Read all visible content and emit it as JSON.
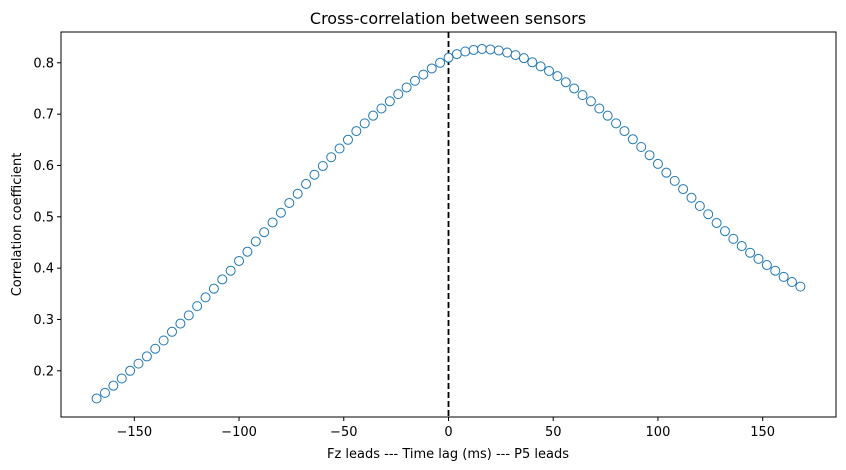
{
  "chart_data": {
    "type": "scatter",
    "title": "Cross-correlation between sensors",
    "xlabel": "Fz leads --- Time lag (ms) --- P5 leads",
    "ylabel": "Correlation coefficient",
    "xlim": [
      -185,
      185
    ],
    "ylim": [
      0.11,
      0.86
    ],
    "xticks": [
      -150,
      -100,
      -50,
      0,
      50,
      100,
      150
    ],
    "xtick_labels": [
      "−150",
      "−100",
      "−50",
      "0",
      "50",
      "100",
      "150"
    ],
    "yticks": [
      0.2,
      0.3,
      0.4,
      0.5,
      0.6,
      0.7,
      0.8
    ],
    "ytick_labels": [
      "0.2",
      "0.3",
      "0.4",
      "0.5",
      "0.6",
      "0.7",
      "0.8"
    ],
    "vline_x": 0,
    "marker_color": "#1f77b4",
    "series": [
      {
        "name": "cross-correlation",
        "x": [
          -168,
          -164,
          -160,
          -156,
          -152,
          -148,
          -144,
          -140,
          -136,
          -132,
          -128,
          -124,
          -120,
          -116,
          -112,
          -108,
          -104,
          -100,
          -96,
          -92,
          -88,
          -84,
          -80,
          -76,
          -72,
          -68,
          -64,
          -60,
          -56,
          -52,
          -48,
          -44,
          -40,
          -36,
          -32,
          -28,
          -24,
          -20,
          -16,
          -12,
          -8,
          -4,
          0,
          4,
          8,
          12,
          16,
          20,
          24,
          28,
          32,
          36,
          40,
          44,
          48,
          52,
          56,
          60,
          64,
          68,
          72,
          76,
          80,
          84,
          88,
          92,
          96,
          100,
          104,
          108,
          112,
          116,
          120,
          124,
          128,
          132,
          136,
          140,
          144,
          148,
          152,
          156,
          160,
          164,
          168
        ],
        "y": [
          0.146,
          0.157,
          0.171,
          0.185,
          0.2,
          0.214,
          0.228,
          0.243,
          0.259,
          0.276,
          0.292,
          0.308,
          0.326,
          0.343,
          0.36,
          0.378,
          0.395,
          0.414,
          0.432,
          0.452,
          0.47,
          0.489,
          0.508,
          0.527,
          0.545,
          0.564,
          0.582,
          0.599,
          0.616,
          0.633,
          0.65,
          0.667,
          0.682,
          0.697,
          0.711,
          0.725,
          0.739,
          0.752,
          0.765,
          0.777,
          0.789,
          0.8,
          0.81,
          0.817,
          0.822,
          0.825,
          0.827,
          0.826,
          0.824,
          0.82,
          0.815,
          0.809,
          0.801,
          0.793,
          0.784,
          0.774,
          0.762,
          0.75,
          0.737,
          0.725,
          0.711,
          0.697,
          0.682,
          0.667,
          0.651,
          0.636,
          0.62,
          0.603,
          0.586,
          0.57,
          0.554,
          0.537,
          0.521,
          0.505,
          0.488,
          0.472,
          0.457,
          0.443,
          0.43,
          0.418,
          0.406,
          0.395,
          0.383,
          0.373,
          0.364
        ]
      }
    ]
  }
}
